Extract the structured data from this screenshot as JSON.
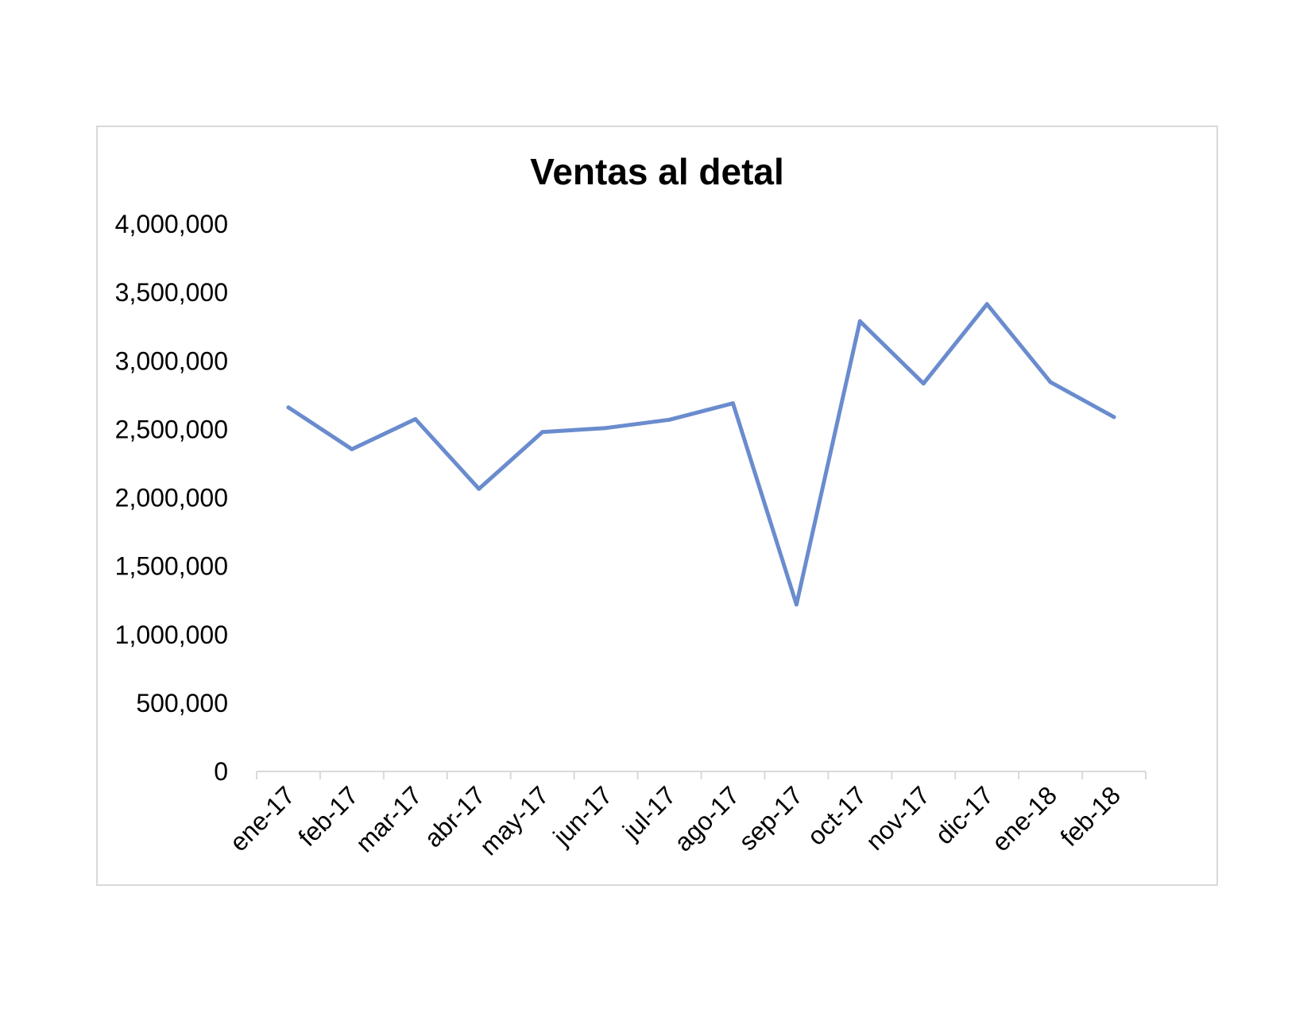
{
  "chart_data": {
    "type": "line",
    "title": "Ventas al detal",
    "xlabel": "",
    "ylabel": "",
    "categories": [
      "ene-17",
      "feb-17",
      "mar-17",
      "abr-17",
      "may-17",
      "jun-17",
      "jul-17",
      "ago-17",
      "sep-17",
      "oct-17",
      "nov-17",
      "dic-17",
      "ene-18",
      "feb-18"
    ],
    "series": [
      {
        "values": [
          2660000,
          2355000,
          2575000,
          2065000,
          2480000,
          2510000,
          2570000,
          2690000,
          1220000,
          3290000,
          2835000,
          3415000,
          2845000,
          2590000
        ],
        "color": "#6a8cce"
      }
    ],
    "ylim": [
      0,
      4000000
    ],
    "yticks": [
      0,
      500000,
      1000000,
      1500000,
      2000000,
      2500000,
      3000000,
      3500000,
      4000000
    ],
    "ytick_labels": [
      "0",
      "500,000",
      "1,000,000",
      "1,500,000",
      "2,000,000",
      "2,500,000",
      "3,000,000",
      "3,500,000",
      "4,000,000"
    ],
    "grid": false,
    "legend": "none",
    "axis_color": "#d9d9d9"
  }
}
